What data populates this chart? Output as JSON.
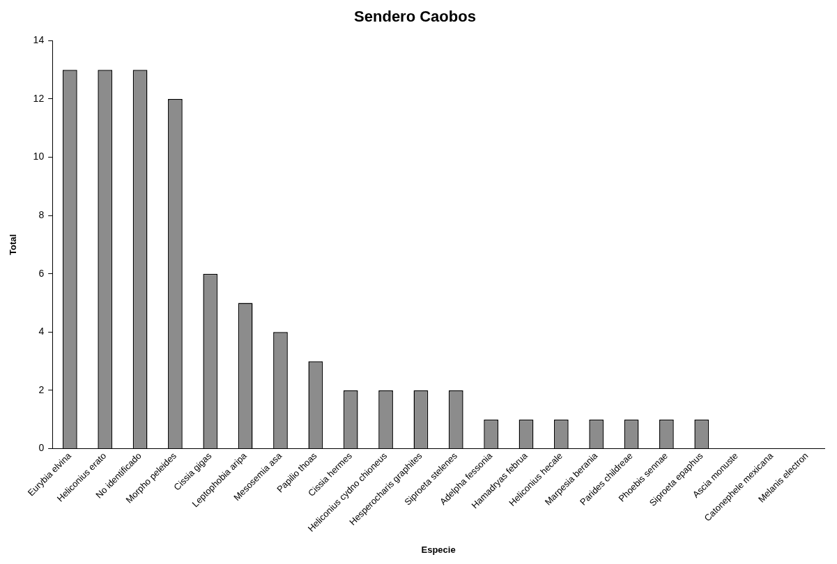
{
  "chart_data": {
    "type": "bar",
    "title": "Sendero Caobos",
    "xlabel": "Especie",
    "ylabel": "Total",
    "categories": [
      "Eurybia elvina",
      "Heliconius erato",
      "No identificado",
      "Morpho peleides",
      "Cissia gigas",
      "Leptophobia aripa",
      "Mesosemia asa",
      "Papilio thoas",
      "Cissia hermes",
      "Heliconius cydno chioneus",
      "Hesperocharis graphites",
      "Siproeta stelenes",
      "Adelpha fessonia",
      "Hamadryas februa",
      "Heliconius hecale",
      "Marpesia berania",
      "Parides childreae",
      "Phoebis sennae",
      "Siproeta epaphus",
      "Ascia monuste",
      "Catonephele mexicana",
      "Melanis electron"
    ],
    "values": [
      13,
      13,
      13,
      12,
      6,
      5,
      4,
      3,
      2,
      2,
      2,
      2,
      1,
      1,
      1,
      1,
      1,
      1,
      1,
      0,
      0,
      0
    ],
    "color": "#8c8c8c",
    "ylim": [
      0,
      14
    ],
    "yticks": [
      0,
      2,
      4,
      6,
      8,
      10,
      12,
      14
    ],
    "grid": false,
    "legend": false
  }
}
